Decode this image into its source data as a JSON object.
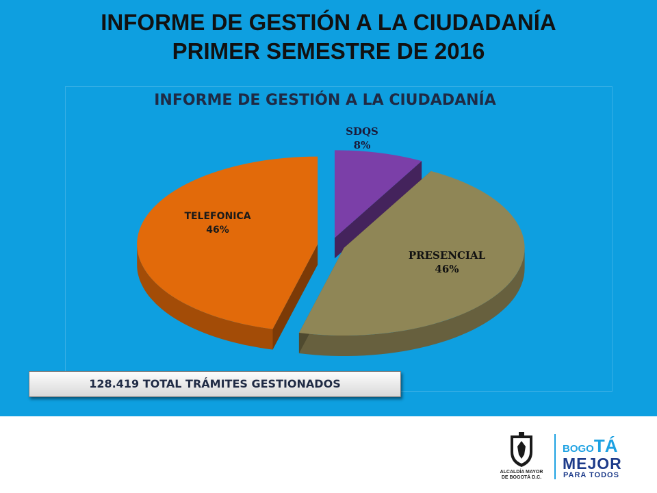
{
  "slide": {
    "title_line1": "INFORME DE GESTIÓN A LA CIUDADANÍA",
    "title_line2": "PRIMER SEMESTRE DE 2016",
    "background_color": "#0e9fe0"
  },
  "chart_data": {
    "type": "pie",
    "title": "INFORME DE GESTIÓN A LA CIUDADANÍA",
    "style": "3d-exploded",
    "slices": [
      {
        "name": "SDQS",
        "value": 8,
        "label": "8%",
        "color": "#7b3fa8"
      },
      {
        "name": "PRESENCIAL",
        "value": 46,
        "label": "46%",
        "color": "#8f8656"
      },
      {
        "name": "TELEFONICA",
        "value": 46,
        "label": "46%",
        "color": "#e26a0a"
      }
    ]
  },
  "summary": {
    "total_label": "128.419 TOTAL TRÁMITES GESTIONADOS"
  },
  "footer": {
    "alcaldia_line1": "ALCALDÍA MAYOR",
    "alcaldia_line2": "DE BOGOTÁ D.C.",
    "bogota_small": "BOGO",
    "bogota_big": "TÁ",
    "mejor": "MEJOR",
    "para_todos": "PARA TODOS",
    "accent_color": "#1da1e2",
    "dark_color": "#1d3b8a"
  }
}
